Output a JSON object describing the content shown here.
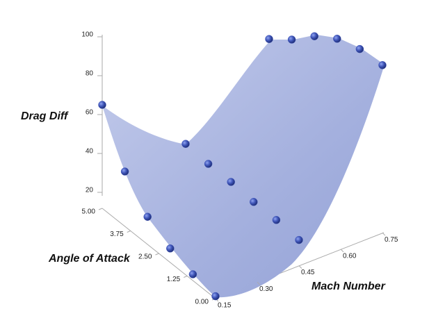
{
  "chart_data": {
    "type": "surface3d",
    "zlabel": "Drag Diff",
    "ylabel": "Angle of Attack",
    "xlabel": "Mach Number",
    "color": "#3f55b8",
    "surface_color": "#a9b4e0",
    "zlim": [
      20,
      100
    ],
    "zticks": [
      20,
      40,
      60,
      80,
      100
    ],
    "yticks": [
      {
        "value": 0,
        "label": "0.00"
      },
      {
        "value": 1.25,
        "label": "1.25"
      },
      {
        "value": 2.5,
        "label": "2.50"
      },
      {
        "value": 3.75,
        "label": "3.75"
      },
      {
        "value": 5,
        "label": "5.00"
      }
    ],
    "xticks": [
      0.15,
      {
        "value": 0.3,
        "label": "0.30"
      },
      0.45,
      {
        "value": 0.6,
        "label": "0.60"
      },
      0.75
    ],
    "points": {
      "x": [
        0.15,
        0.15,
        0.15,
        0.15,
        0.15,
        0.15,
        0.45,
        0.45,
        0.45,
        0.45,
        0.45,
        0.45,
        0.75,
        0.75,
        0.75,
        0.75,
        0.75,
        0.75
      ],
      "y": [
        0,
        1,
        2,
        3,
        4,
        5,
        0,
        1,
        2,
        3,
        4,
        5,
        0,
        1,
        2,
        3,
        4,
        5
      ],
      "z": [
        13,
        15,
        19,
        26,
        40,
        65,
        25,
        26,
        26,
        27,
        27,
        28,
        98,
        97,
        93,
        85,
        74,
        65
      ]
    }
  }
}
